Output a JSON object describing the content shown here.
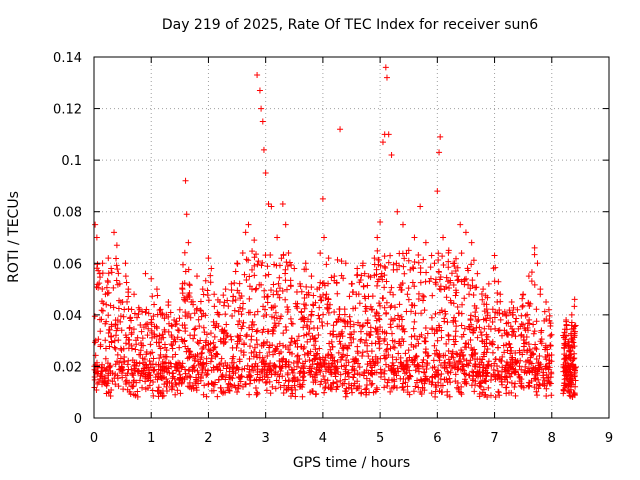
{
  "chart_data": {
    "type": "scatter",
    "title": "Day 219 of 2025, Rate Of TEC Index for receiver sun6",
    "xlabel": "GPS time / hours",
    "ylabel": "ROTI / TECUs",
    "xlim": [
      0,
      9
    ],
    "ylim": [
      0,
      0.14
    ],
    "xticks": [
      "0",
      "1",
      "2",
      "3",
      "4",
      "5",
      "6",
      "7",
      "8",
      "9"
    ],
    "yticks": [
      "0",
      "0.02",
      "0.04",
      "0.06",
      "0.08",
      "0.1",
      "0.12",
      "0.14"
    ],
    "grid": true,
    "marker": "+",
    "color": "#ff0000",
    "series": [
      {
        "name": "ROTI",
        "x": [
          0.02,
          0.05,
          0.1,
          0.15,
          0.2,
          0.25,
          0.3,
          0.35,
          0.4,
          0.45,
          0.5,
          0.55,
          0.6,
          0.7,
          0.8,
          0.9,
          1.0,
          1.05,
          1.1,
          1.2,
          1.3,
          1.4,
          1.5,
          1.6,
          1.62,
          1.65,
          1.7,
          1.8,
          1.9,
          2.0,
          2.05,
          2.1,
          2.2,
          2.3,
          2.4,
          2.5,
          2.6,
          2.65,
          2.7,
          2.8,
          2.85,
          2.9,
          2.92,
          2.95,
          2.97,
          3.0,
          3.05,
          3.1,
          3.2,
          3.3,
          3.35,
          3.4,
          3.5,
          3.6,
          3.7,
          3.8,
          3.9,
          4.0,
          4.02,
          4.1,
          4.2,
          4.3,
          4.4,
          4.5,
          4.6,
          4.7,
          4.8,
          4.9,
          4.95,
          5.0,
          5.05,
          5.08,
          5.1,
          5.12,
          5.15,
          5.2,
          5.3,
          5.4,
          5.5,
          5.6,
          5.7,
          5.8,
          5.9,
          5.95,
          6.0,
          6.03,
          6.05,
          6.1,
          6.2,
          6.3,
          6.4,
          6.5,
          6.6,
          6.7,
          6.8,
          6.9,
          7.0,
          7.1,
          7.2,
          7.3,
          7.4,
          7.5,
          7.6,
          7.7,
          7.75,
          7.8,
          7.9,
          7.95,
          8.2,
          8.25,
          8.3,
          8.35,
          8.4
        ],
        "y": [
          0.075,
          0.07,
          0.056,
          0.06,
          0.048,
          0.062,
          0.058,
          0.072,
          0.067,
          0.052,
          0.045,
          0.06,
          0.05,
          0.048,
          0.042,
          0.056,
          0.054,
          0.044,
          0.05,
          0.04,
          0.045,
          0.038,
          0.042,
          0.092,
          0.079,
          0.068,
          0.045,
          0.055,
          0.05,
          0.062,
          0.058,
          0.048,
          0.045,
          0.05,
          0.052,
          0.06,
          0.064,
          0.072,
          0.075,
          0.069,
          0.133,
          0.127,
          0.12,
          0.115,
          0.104,
          0.095,
          0.083,
          0.082,
          0.07,
          0.083,
          0.075,
          0.064,
          0.058,
          0.052,
          0.06,
          0.055,
          0.05,
          0.085,
          0.07,
          0.062,
          0.055,
          0.112,
          0.06,
          0.052,
          0.058,
          0.06,
          0.055,
          0.062,
          0.07,
          0.076,
          0.107,
          0.11,
          0.136,
          0.132,
          0.11,
          0.102,
          0.08,
          0.075,
          0.065,
          0.07,
          0.082,
          0.068,
          0.063,
          0.06,
          0.088,
          0.103,
          0.109,
          0.07,
          0.065,
          0.06,
          0.075,
          0.072,
          0.068,
          0.056,
          0.05,
          0.052,
          0.063,
          0.048,
          0.04,
          0.045,
          0.042,
          0.048,
          0.055,
          0.066,
          0.06,
          0.05,
          0.045,
          0.042,
          0.032,
          0.038,
          0.028,
          0.04,
          0.046
        ]
      }
    ]
  }
}
